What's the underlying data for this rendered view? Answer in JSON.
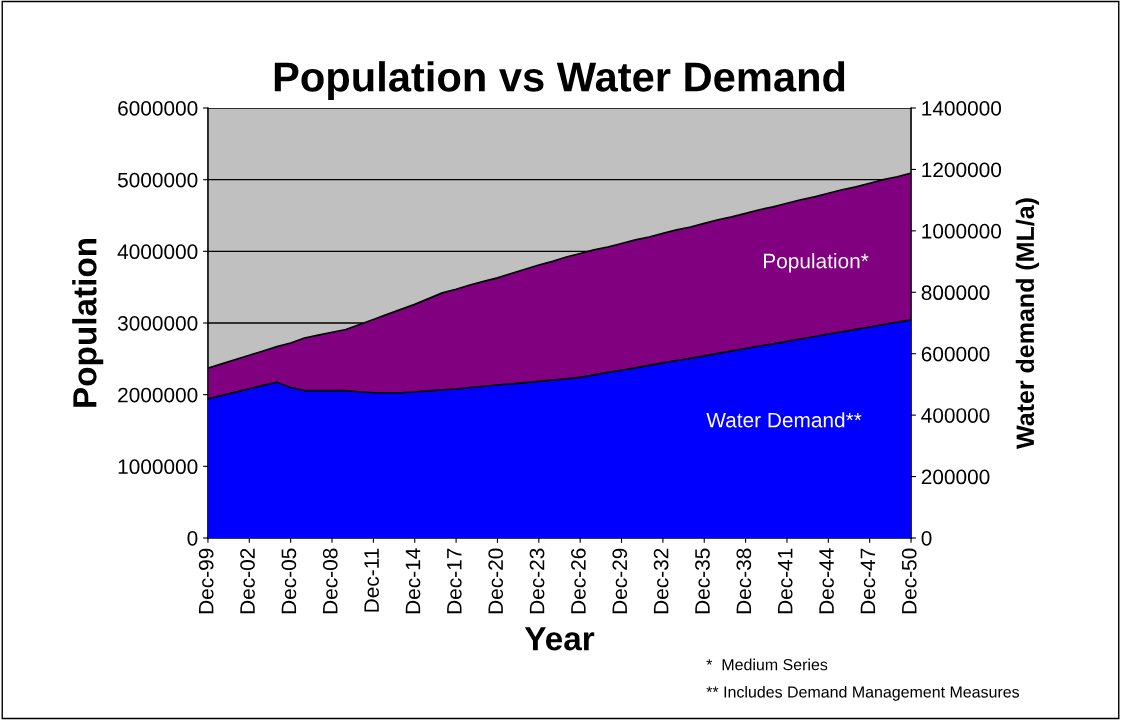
{
  "chart_data": {
    "type": "area",
    "title": "Population vs Water Demand",
    "xlabel": "Year",
    "ylabel": "Population",
    "y2label": "Water demand (ML/a)",
    "categories": [
      "Dec-99",
      null,
      null,
      "Dec-02",
      null,
      null,
      "Dec-05",
      null,
      null,
      "Dec-08",
      null,
      null,
      "Dec-11",
      null,
      null,
      "Dec-14",
      null,
      null,
      "Dec-17",
      null,
      null,
      "Dec-20",
      null,
      null,
      "Dec-23",
      null,
      null,
      "Dec-26",
      null,
      null,
      "Dec-29",
      null,
      null,
      "Dec-32",
      null,
      null,
      "Dec-35",
      null,
      null,
      "Dec-38",
      null,
      null,
      "Dec-41",
      null,
      null,
      "Dec-44",
      null,
      null,
      "Dec-47",
      null,
      null,
      "Dec-50"
    ],
    "series": [
      {
        "name": "Population*",
        "color": "#800080",
        "values": [
          2370000,
          2430000,
          2490000,
          2550000,
          2610000,
          2670000,
          2720000,
          2790000,
          2830000,
          2870000,
          2910000,
          2980000,
          3050000,
          3120000,
          3190000,
          3260000,
          3340000,
          3420000,
          3470000,
          3530000,
          3580000,
          3630000,
          3690000,
          3750000,
          3810000,
          3860000,
          3920000,
          3970000,
          4020000,
          4060000,
          4110000,
          4160000,
          4200000,
          4250000,
          4300000,
          4340000,
          4390000,
          4440000,
          4480000,
          4530000,
          4580000,
          4620000,
          4670000,
          4720000,
          4760000,
          4810000,
          4860000,
          4900000,
          4950000,
          5000000,
          5040000,
          5090000
        ]
      },
      {
        "name": "Water Demand**",
        "color": "#0000ff",
        "axis": "y2",
        "values": [
          453000,
          464000,
          475000,
          486000,
          497000,
          507000,
          490000,
          480000,
          480000,
          480000,
          480000,
          476000,
          473000,
          473000,
          473000,
          476000,
          479000,
          482000,
          485000,
          490000,
          494000,
          498000,
          502000,
          506000,
          510000,
          514000,
          518000,
          523000,
          531000,
          539000,
          546000,
          554000,
          562000,
          570000,
          578000,
          585000,
          593000,
          601000,
          609000,
          617000,
          625000,
          632000,
          640000,
          648000,
          656000,
          664000,
          671000,
          679000,
          687000,
          695000,
          703000,
          710000
        ]
      }
    ],
    "ylim": [
      0,
      6000000
    ],
    "yticks": [
      0,
      1000000,
      2000000,
      3000000,
      4000000,
      5000000,
      6000000
    ],
    "y2lim": [
      0,
      1400000
    ],
    "y2ticks": [
      0,
      200000,
      400000,
      600000,
      800000,
      1000000,
      1200000,
      1400000
    ],
    "grid": "y",
    "annotations": [
      "*  Medium Series",
      "** Includes Demand Management Measures"
    ]
  }
}
